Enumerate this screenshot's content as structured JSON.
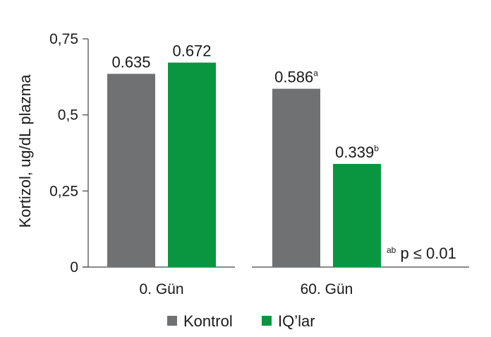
{
  "chart_data": {
    "type": "bar",
    "title": "",
    "xlabel": "",
    "ylabel": "Kortizol, ug/dL plazma",
    "ylim": [
      0,
      0.75
    ],
    "y_ticks": [
      "0",
      "0,25",
      "0,5",
      "0,75"
    ],
    "y_tick_values": [
      0,
      0.25,
      0.5,
      0.75
    ],
    "categories": [
      "0. Gün",
      "60. Gün"
    ],
    "series": [
      {
        "name": "Kontrol",
        "color": "#707173",
        "values": [
          0.635,
          0.586
        ],
        "labels": [
          "0.635",
          "0.586"
        ],
        "superscripts": [
          "",
          "a"
        ]
      },
      {
        "name": "IQ’lar",
        "color": "#0a9640",
        "values": [
          0.672,
          0.339
        ],
        "labels": [
          "0.672",
          "0.339"
        ],
        "superscripts": [
          "",
          "b"
        ]
      }
    ],
    "note": {
      "superscript": "ab",
      "text": " p ≤ 0.01"
    },
    "legend": "bottom",
    "grid": false
  }
}
